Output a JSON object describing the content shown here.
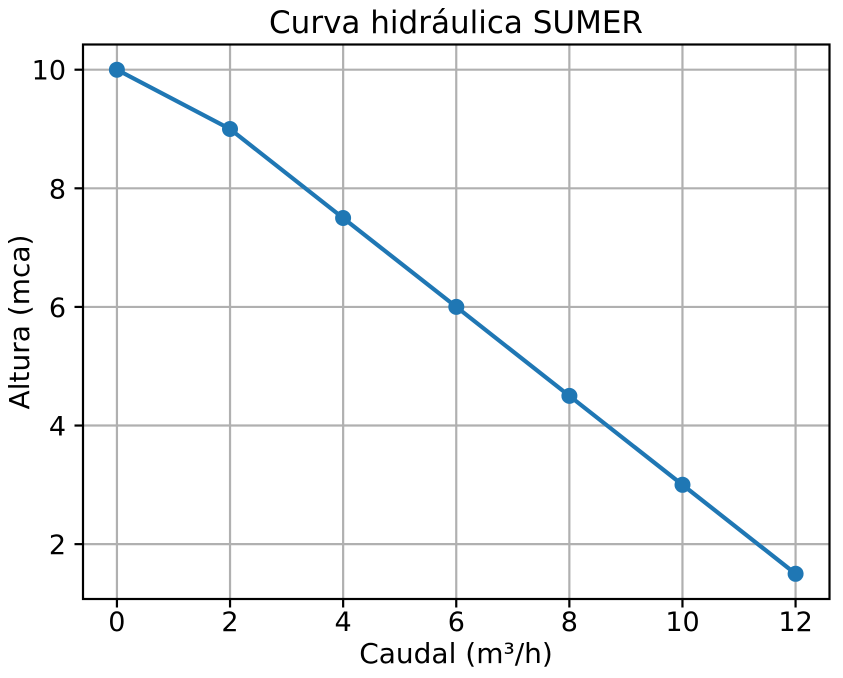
{
  "chart_data": {
    "type": "line",
    "title": "Curva hidráulica SUMER",
    "xlabel": "Caudal (m³/h)",
    "ylabel": "Altura (mca)",
    "x": [
      0,
      2,
      4,
      6,
      8,
      10,
      12
    ],
    "series": [
      {
        "values": [
          10,
          9,
          7.5,
          6,
          4.5,
          3,
          1.5
        ],
        "color": "#1f77b4",
        "marker": "circle"
      }
    ],
    "xticks": [
      0,
      2,
      4,
      6,
      8,
      10,
      12
    ],
    "xtick_labels": [
      "0",
      "2",
      "4",
      "6",
      "8",
      "10",
      "12"
    ],
    "yticks": [
      2,
      4,
      6,
      8,
      10
    ],
    "ytick_labels": [
      "2",
      "4",
      "6",
      "8",
      "10"
    ],
    "xlim": [
      -0.6,
      12.6
    ],
    "ylim": [
      1.075,
      10.425
    ],
    "grid": true,
    "grid_color": "#b0b0b0",
    "spine_color": "#000000",
    "background": "#ffffff",
    "legend": "none"
  }
}
